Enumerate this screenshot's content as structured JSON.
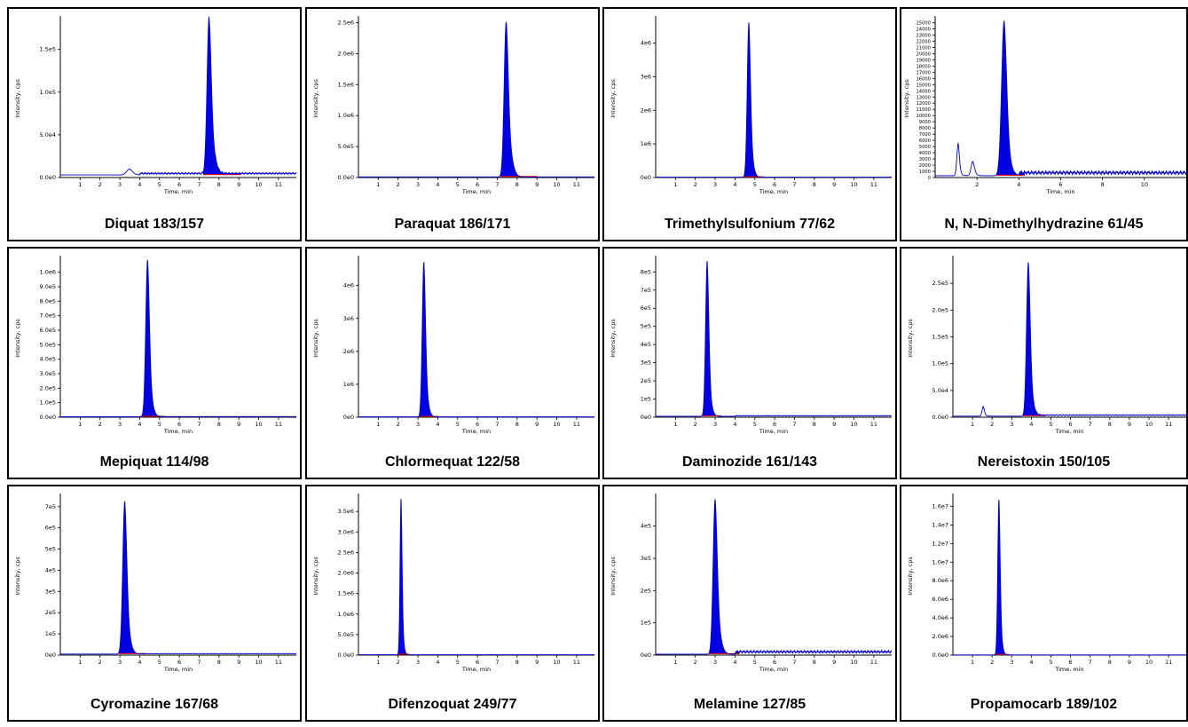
{
  "chart_data": [
    {
      "type": "area",
      "caption": "Diquat 183/157",
      "xlabel": "Time, min",
      "ylabel": "Intensity, cps",
      "yticks": [
        "0.0e0",
        "5.0e4",
        "1.0e5",
        "1.5e5"
      ],
      "ymax": 185000,
      "xlim": [
        0,
        11.9
      ],
      "xticks": [
        1,
        2,
        3,
        4,
        5,
        6,
        7,
        8,
        9,
        10,
        11
      ],
      "baseline": 3000,
      "tail": 3000,
      "peaks": [
        {
          "t": 7.5,
          "h": 182000,
          "w": 0.1,
          "tail": 0.45,
          "fill": true
        },
        {
          "t": 3.5,
          "h": 7000,
          "w": 0.15,
          "tail": 0.2,
          "fill": false
        }
      ]
    },
    {
      "type": "area",
      "caption": "Paraquat 186/171",
      "xlabel": "Time, min",
      "ylabel": "Intensity, cps",
      "yticks": [
        "0.0e0",
        "5.0e5",
        "1.0e6",
        "1.5e6",
        "2.0e6",
        "2.5e6"
      ],
      "ymax": 2550000,
      "xlim": [
        0,
        11.9
      ],
      "xticks": [
        1,
        2,
        3,
        4,
        5,
        6,
        7,
        8,
        9,
        10,
        11
      ],
      "baseline": 10000,
      "tail": 0,
      "peaks": [
        {
          "t": 7.45,
          "h": 2500000,
          "w": 0.1,
          "tail": 0.45,
          "fill": true
        }
      ]
    },
    {
      "type": "area",
      "caption": "Trimethylsulfonium 77/62",
      "xlabel": "Time, min",
      "ylabel": "Intensity, cps",
      "yticks": [
        "0e0",
        "1e6",
        "2e6",
        "3e6",
        "4e6"
      ],
      "ymax": 4700000,
      "xlim": [
        0,
        11.9
      ],
      "xticks": [
        1,
        2,
        3,
        4,
        5,
        6,
        7,
        8,
        9,
        10,
        11
      ],
      "baseline": 10000,
      "tail": 0,
      "peaks": [
        {
          "t": 4.7,
          "h": 4600000,
          "w": 0.08,
          "tail": 0.22,
          "fill": true
        }
      ]
    },
    {
      "type": "area",
      "caption": "N, N-Dimethylhydrazine 61/45",
      "xlabel": "Time, min",
      "ylabel": "Intensity, cps",
      "yticks": [
        "0",
        "1000",
        "2000",
        "3000",
        "4000",
        "5000",
        "6000",
        "7000",
        "8000",
        "9000",
        "10000",
        "11000",
        "12000",
        "13000",
        "14000",
        "15000",
        "16000",
        "17000",
        "18000",
        "19000",
        "20000",
        "21000",
        "22000",
        "23000",
        "24000",
        "25000"
      ],
      "ymax": 25500,
      "xlim": [
        0,
        12
      ],
      "xticks": [
        2,
        4,
        6,
        8,
        10
      ],
      "baseline": 300,
      "tail": 800,
      "peaks": [
        {
          "t": 3.3,
          "h": 25000,
          "w": 0.12,
          "tail": 0.28,
          "fill": true
        },
        {
          "t": 1.1,
          "h": 5200,
          "w": 0.06,
          "tail": 0.12,
          "fill": false
        },
        {
          "t": 1.8,
          "h": 2300,
          "w": 0.08,
          "tail": 0.15,
          "fill": false
        }
      ]
    },
    {
      "type": "area",
      "caption": "Mepiquat 114/98",
      "xlabel": "Time, min",
      "ylabel": "Intensity, cps",
      "yticks": [
        "0.0e0",
        "1.0e5",
        "2.0e5",
        "3.0e5",
        "4.0e5",
        "5.0e5",
        "6.0e5",
        "7.0e5",
        "8.0e5",
        "9.0e5",
        "1.0e6"
      ],
      "ymax": 1090000,
      "xlim": [
        0,
        11.9
      ],
      "xticks": [
        1,
        2,
        3,
        4,
        5,
        6,
        7,
        8,
        9,
        10,
        11
      ],
      "baseline": 3000,
      "tail": 2000,
      "peaks": [
        {
          "t": 4.4,
          "h": 1080000,
          "w": 0.09,
          "tail": 0.25,
          "fill": true
        }
      ]
    },
    {
      "type": "area",
      "caption": "Chlormequat 122/58",
      "xlabel": "Time, min",
      "ylabel": "Intensity, cps",
      "yticks": [
        "0e0",
        "1e6",
        "2e6",
        "3e6",
        "4e6"
      ],
      "ymax": 4800000,
      "xlim": [
        0,
        11.9
      ],
      "xticks": [
        1,
        2,
        3,
        4,
        5,
        6,
        7,
        8,
        9,
        10,
        11
      ],
      "baseline": 10000,
      "tail": 0,
      "peaks": [
        {
          "t": 3.3,
          "h": 4700000,
          "w": 0.08,
          "tail": 0.22,
          "fill": true
        }
      ]
    },
    {
      "type": "area",
      "caption": "Daminozide 161/143",
      "xlabel": "Time, min",
      "ylabel": "Intensity, cps",
      "yticks": [
        "0e0",
        "1e5",
        "2e5",
        "3e5",
        "4e5",
        "5e5",
        "6e5",
        "7e5",
        "8e5"
      ],
      "ymax": 870000,
      "xlim": [
        0,
        11.9
      ],
      "xticks": [
        1,
        2,
        3,
        4,
        5,
        6,
        7,
        8,
        9,
        10,
        11
      ],
      "baseline": 5000,
      "tail": 5000,
      "peaks": [
        {
          "t": 2.6,
          "h": 855000,
          "w": 0.08,
          "tail": 0.2,
          "fill": true
        }
      ]
    },
    {
      "type": "area",
      "caption": "Nereistoxin 150/105",
      "xlabel": "Time, min",
      "ylabel": "Intensity, cps",
      "yticks": [
        "0.0e0",
        "5.0e4",
        "1.0e5",
        "1.5e5",
        "2.0e5",
        "2.5e5"
      ],
      "ymax": 295000,
      "xlim": [
        0,
        11.9
      ],
      "xticks": [
        1,
        2,
        3,
        4,
        5,
        6,
        7,
        8,
        9,
        10,
        11
      ],
      "baseline": 2000,
      "tail": 3000,
      "peaks": [
        {
          "t": 3.85,
          "h": 287000,
          "w": 0.09,
          "tail": 0.25,
          "fill": true
        },
        {
          "t": 1.55,
          "h": 18000,
          "w": 0.06,
          "tail": 0.1,
          "fill": false
        }
      ]
    },
    {
      "type": "area",
      "caption": "Cyromazine 167/68",
      "xlabel": "Time, min",
      "ylabel": "Intensity, cps",
      "yticks": [
        "0e0",
        "1e5",
        "2e5",
        "3e5",
        "4e5",
        "5e5",
        "6e5",
        "7e5"
      ],
      "ymax": 745000,
      "xlim": [
        0,
        11.9
      ],
      "xticks": [
        1,
        2,
        3,
        4,
        5,
        6,
        7,
        8,
        9,
        10,
        11
      ],
      "baseline": 5000,
      "tail": 3000,
      "peaks": [
        {
          "t": 3.25,
          "h": 720000,
          "w": 0.1,
          "tail": 0.3,
          "fill": true
        }
      ]
    },
    {
      "type": "area",
      "caption": "Difenzoquat 249/77",
      "xlabel": "Time, min",
      "ylabel": "Intensity, cps",
      "yticks": [
        "0.0e0",
        "5.0e5",
        "1.0e6",
        "1.5e6",
        "2.0e6",
        "2.5e6",
        "3.0e6",
        "3.5e6"
      ],
      "ymax": 3850000,
      "xlim": [
        0,
        11.9
      ],
      "xticks": [
        1,
        2,
        3,
        4,
        5,
        6,
        7,
        8,
        9,
        10,
        11
      ],
      "baseline": 10000,
      "tail": 0,
      "peaks": [
        {
          "t": 2.15,
          "h": 3800000,
          "w": 0.05,
          "tail": 0.12,
          "fill": true
        }
      ]
    },
    {
      "type": "area",
      "caption": "Melamine 127/85",
      "xlabel": "Time, min",
      "ylabel": "Intensity, cps",
      "yticks": [
        "0e0",
        "1e5",
        "2e5",
        "3e5",
        "4e5"
      ],
      "ymax": 490000,
      "xlim": [
        0,
        11.9
      ],
      "xticks": [
        1,
        2,
        3,
        4,
        5,
        6,
        7,
        8,
        9,
        10,
        11
      ],
      "baseline": 3000,
      "tail": 12000,
      "peaks": [
        {
          "t": 3.0,
          "h": 480000,
          "w": 0.1,
          "tail": 0.35,
          "fill": true
        }
      ]
    },
    {
      "type": "area",
      "caption": "Propamocarb 189/102",
      "xlabel": "Time, min",
      "ylabel": "Intensity, cps",
      "yticks": [
        "0.0e0",
        "2.0e6",
        "4.0e6",
        "6.0e6",
        "8.0e6",
        "1.0e7",
        "1.2e7",
        "1.4e7",
        "1.6e7"
      ],
      "ymax": 17000000,
      "xlim": [
        0,
        11.9
      ],
      "xticks": [
        1,
        2,
        3,
        4,
        5,
        6,
        7,
        8,
        9,
        10,
        11
      ],
      "baseline": 20000,
      "tail": 0,
      "peaks": [
        {
          "t": 2.35,
          "h": 16700000,
          "w": 0.06,
          "tail": 0.15,
          "fill": true
        }
      ]
    }
  ],
  "colors": {
    "trace": "#0000cc",
    "fill": "#0000e0",
    "baseline_mark": "#ff0000",
    "frame": "#000000"
  }
}
